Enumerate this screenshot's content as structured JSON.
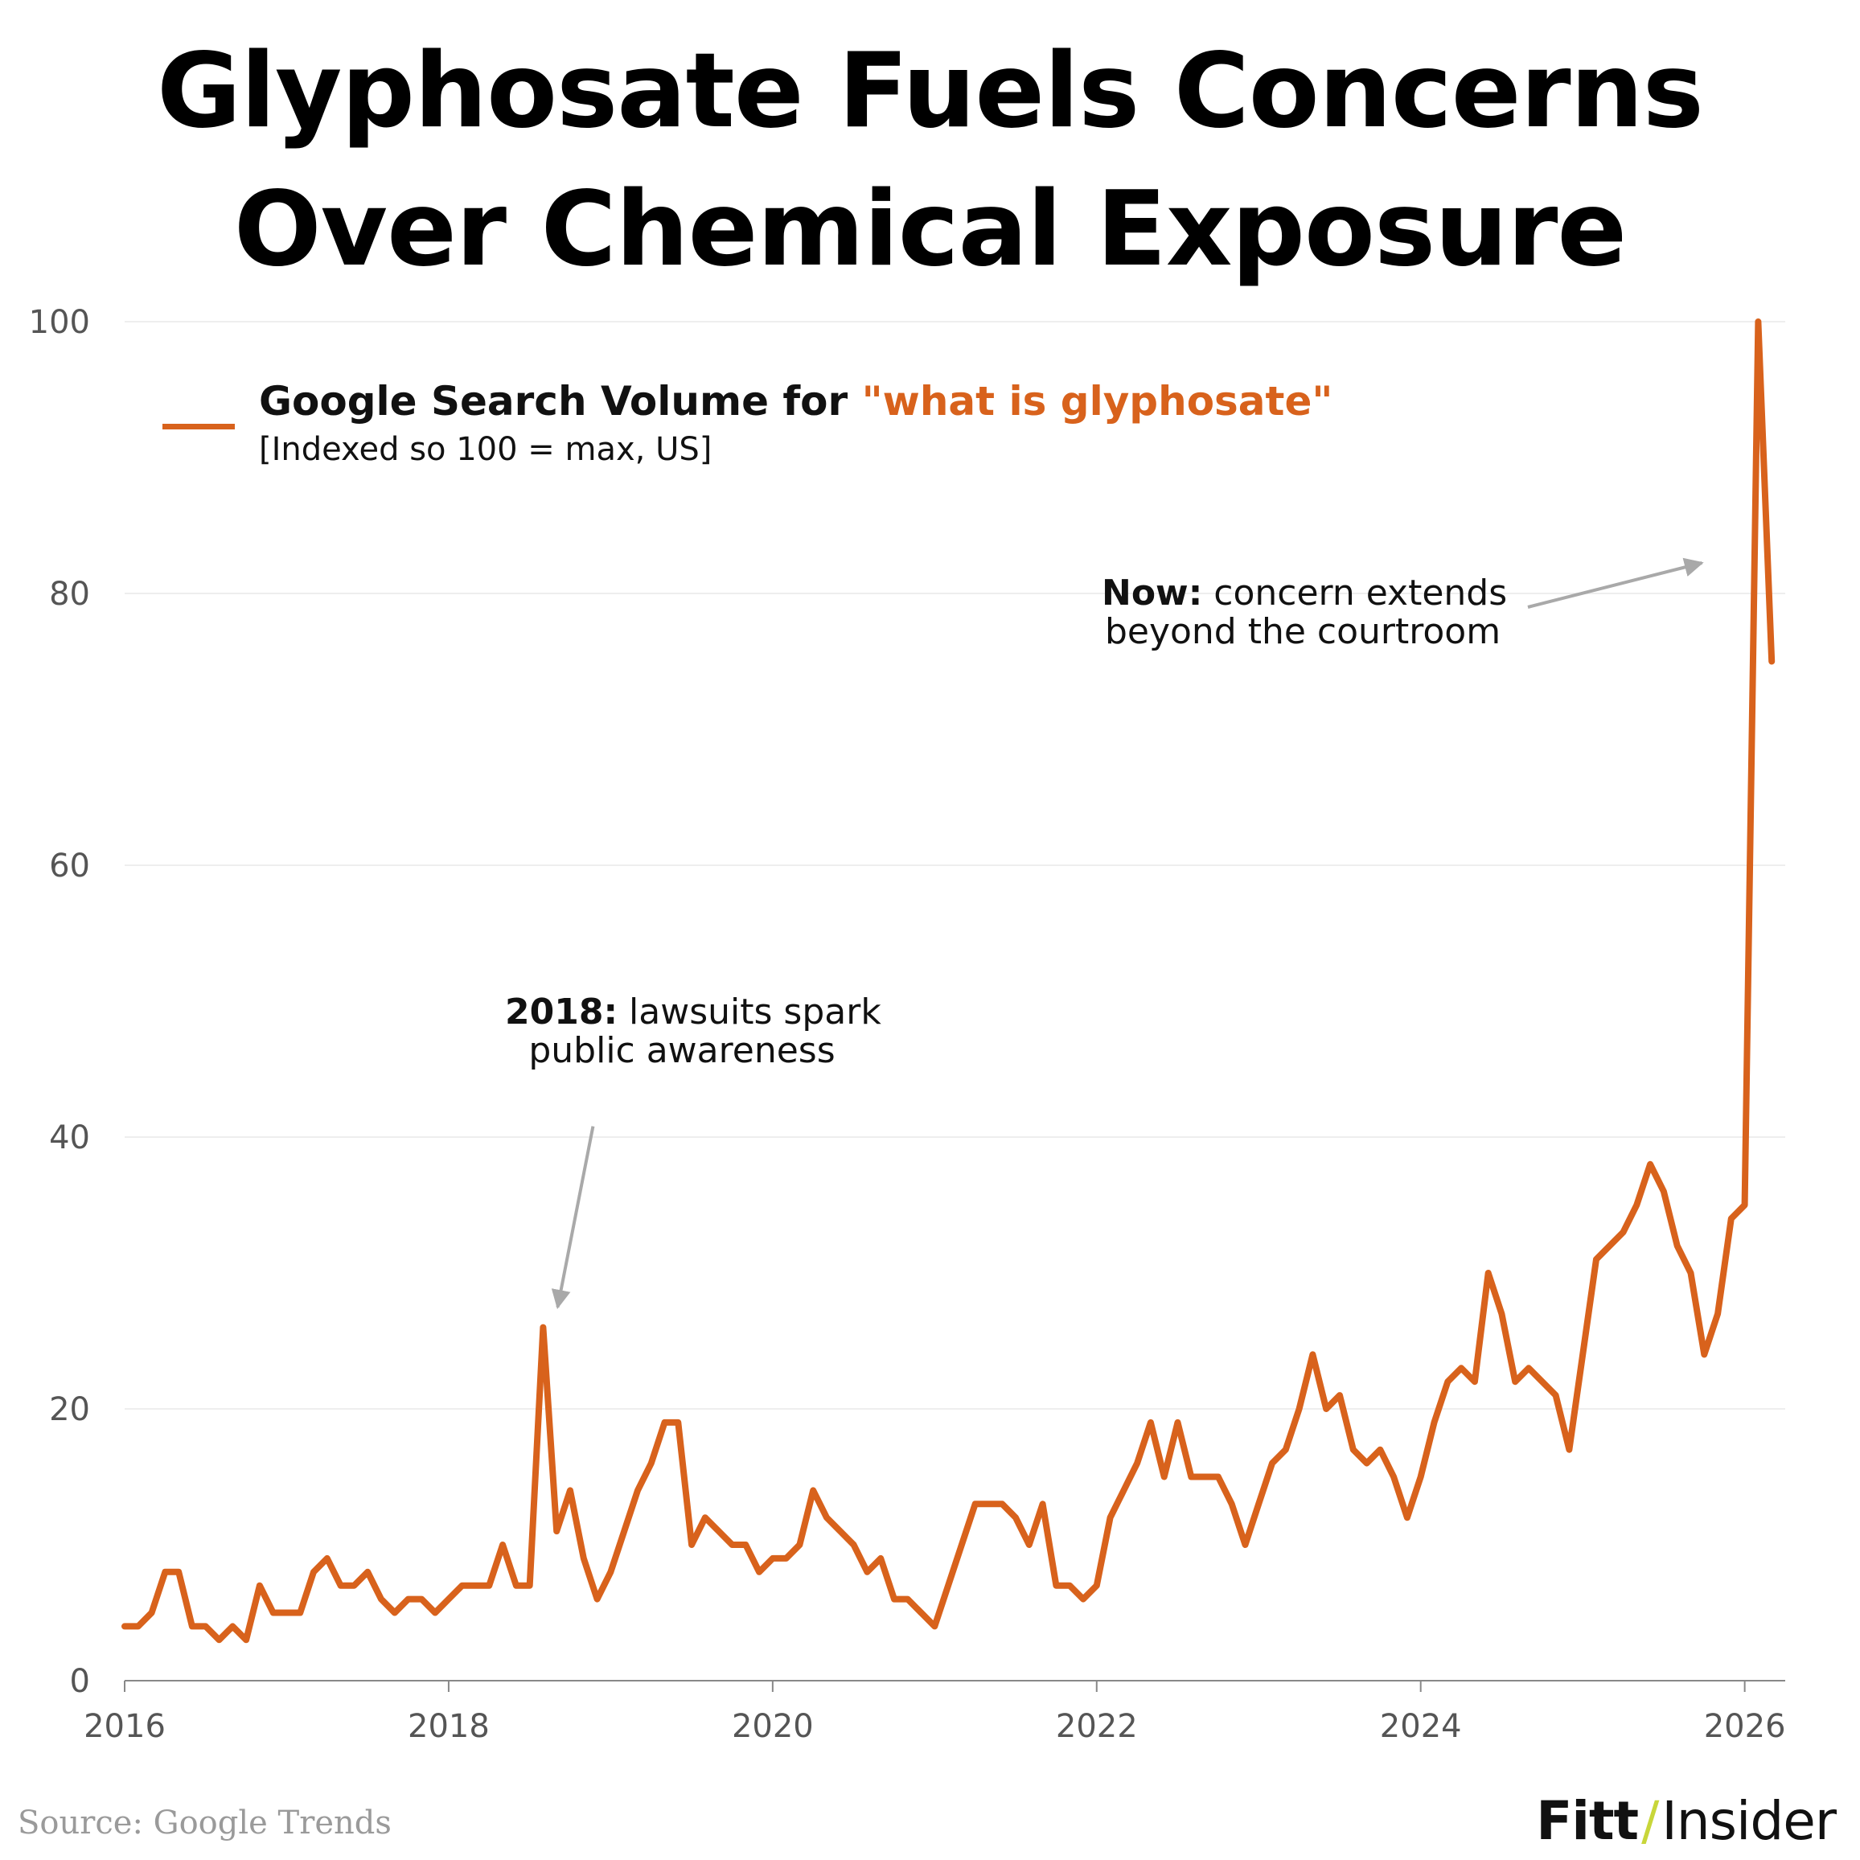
{
  "title_lines": [
    "Glyphosate Fuels Concerns",
    "Over Chemical Exposure"
  ],
  "legend": {
    "prefix": "Google Search Volume for ",
    "term": "\"what is glyphosate\"",
    "subtitle": "[Indexed so 100 = max, US]"
  },
  "annotations": {
    "a2018": {
      "bold": "2018:",
      "text1": " lawsuits spark",
      "text2": "public awareness"
    },
    "now": {
      "bold": "Now:",
      "text1": " concern extends",
      "text2": "beyond the courtroom"
    }
  },
  "source": "Source: Google Trends",
  "brand": {
    "part1": "Fitt",
    "slash": "/",
    "part2": "Insider"
  },
  "colors": {
    "line": "#d8621c",
    "grid": "#eeeeee",
    "axis": "#888888",
    "arrow": "#a9a9a9",
    "tick_text": "#555555"
  },
  "chart_data": {
    "type": "line",
    "title": "Glyphosate Fuels Concerns Over Chemical Exposure",
    "xlabel": "",
    "ylabel": "",
    "xlim": [
      2016,
      2026.25
    ],
    "ylim": [
      0,
      100
    ],
    "x_ticks": [
      "2016",
      "2018",
      "2020",
      "2022",
      "2024",
      "2026"
    ],
    "y_ticks": [
      "0",
      "20",
      "40",
      "60",
      "80",
      "100"
    ],
    "grid": "horizontal",
    "legend_position": "top-left",
    "series": [
      {
        "name": "Google Search Volume for \"what is glyphosate\"",
        "x_start": "2016-01",
        "frequency": "monthly",
        "values": [
          4,
          4,
          5,
          8,
          8,
          4,
          4,
          3,
          4,
          3,
          7,
          5,
          5,
          5,
          8,
          9,
          7,
          7,
          8,
          6,
          5,
          6,
          6,
          5,
          6,
          7,
          7,
          7,
          10,
          7,
          7,
          26,
          11,
          14,
          9,
          6,
          8,
          11,
          14,
          16,
          19,
          19,
          10,
          12,
          11,
          10,
          10,
          8,
          9,
          9,
          10,
          14,
          12,
          11,
          10,
          8,
          9,
          6,
          6,
          5,
          4,
          7,
          10,
          13,
          13,
          13,
          12,
          10,
          13,
          7,
          7,
          6,
          7,
          12,
          14,
          16,
          19,
          15,
          19,
          15,
          15,
          15,
          13,
          10,
          13,
          16,
          17,
          20,
          24,
          20,
          21,
          17,
          16,
          17,
          15,
          12,
          15,
          19,
          22,
          23,
          22,
          30,
          27,
          22,
          23,
          22,
          21,
          17,
          24,
          31,
          32,
          33,
          35,
          38,
          36,
          32,
          30,
          24,
          27,
          34,
          35,
          100,
          75
        ]
      }
    ]
  }
}
